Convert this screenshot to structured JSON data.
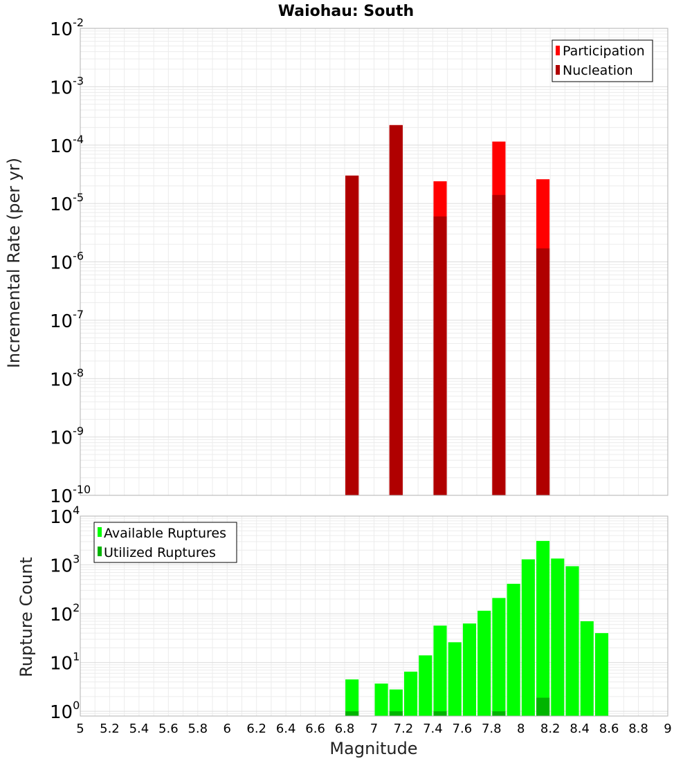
{
  "chart_data": [
    {
      "type": "bar",
      "title": "Waiohau: South",
      "ylabel": "Incremental Rate (per yr)",
      "xlabel": "",
      "xlim": [
        5,
        9
      ],
      "ylim": [
        1e-10,
        0.01
      ],
      "y_scale": "log",
      "grid": true,
      "legend_position": "top-right",
      "series": [
        {
          "name": "Participation",
          "color": "#ff0000",
          "x": [
            6.85,
            7.15,
            7.45,
            7.85,
            8.15
          ],
          "values": [
            3e-05,
            0.00022,
            2.4e-05,
            0.000115,
            2.6e-05
          ]
        },
        {
          "name": "Nucleation",
          "color": "#b00000",
          "x": [
            6.85,
            7.15,
            7.45,
            7.85,
            8.15
          ],
          "values": [
            3e-05,
            0.00022,
            6e-06,
            1.4e-05,
            1.7e-06
          ]
        }
      ]
    },
    {
      "type": "bar",
      "title": "",
      "ylabel": "Rupture Count",
      "xlabel": "Magnitude",
      "xlim": [
        5,
        9
      ],
      "ylim": [
        0.8,
        10000
      ],
      "y_scale": "log",
      "grid": true,
      "legend_position": "top-left",
      "x_ticks": [
        "5",
        "5.2",
        "5.4",
        "5.6",
        "5.8",
        "6",
        "6.2",
        "6.4",
        "6.6",
        "6.8",
        "7",
        "7.2",
        "7.4",
        "7.6",
        "7.8",
        "8",
        "8.2",
        "8.4",
        "8.6",
        "8.8",
        "9"
      ],
      "series": [
        {
          "name": "Available Ruptures",
          "color": "#00ff00",
          "x": [
            6.85,
            7.05,
            7.15,
            7.25,
            7.35,
            7.45,
            7.55,
            7.65,
            7.75,
            7.85,
            7.95,
            8.05,
            8.15,
            8.25,
            8.35,
            8.45,
            8.55
          ],
          "values": [
            4.5,
            3.7,
            2.8,
            6.5,
            14,
            57,
            26,
            63,
            115,
            210,
            410,
            1300,
            3100,
            1350,
            940,
            70,
            40
          ]
        },
        {
          "name": "Utilized Ruptures",
          "color": "#00b400",
          "x": [
            6.85,
            7.15,
            7.45,
            7.85,
            8.15
          ],
          "values": [
            1,
            1,
            1,
            1,
            1.9
          ]
        }
      ]
    }
  ]
}
